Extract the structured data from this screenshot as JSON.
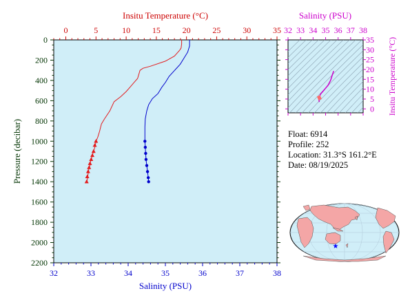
{
  "chart_data": [
    {
      "type": "line",
      "top_axis": {
        "label": "Insitu Temperature (°C)",
        "range": [
          -2,
          35
        ],
        "ticks": [
          0,
          5,
          10,
          15,
          20,
          25,
          30,
          35
        ],
        "color": "#cc0000"
      },
      "bottom_axis": {
        "label": "Salinity (PSU)",
        "range": [
          32,
          38
        ],
        "ticks": [
          32,
          33,
          34,
          35,
          36,
          37,
          38
        ],
        "color": "#0000cc"
      },
      "y_axis": {
        "label": "Pressure (decibar)",
        "range": [
          0,
          2200
        ],
        "reversed": true,
        "ticks": [
          0,
          200,
          400,
          600,
          800,
          1000,
          1200,
          1400,
          1600,
          1800,
          2000,
          2200
        ],
        "color": "#003300"
      },
      "background": "#d0eef8",
      "series": [
        {
          "color": "#e31a1c",
          "marker": "triangle",
          "axis": "top",
          "points": [
            [
              19.2,
              0
            ],
            [
              19.2,
              40
            ],
            [
              19.1,
              80
            ],
            [
              18.9,
              100
            ],
            [
              18.0,
              160
            ],
            [
              16.5,
              210
            ],
            [
              14.0,
              260
            ],
            [
              12.8,
              280
            ],
            [
              12.3,
              300
            ],
            [
              11.9,
              380
            ],
            [
              11.3,
              420
            ],
            [
              10.6,
              470
            ],
            [
              10.0,
              510
            ],
            [
              9.1,
              560
            ],
            [
              8.0,
              610
            ],
            [
              7.3,
              700
            ],
            [
              6.4,
              780
            ],
            [
              5.9,
              830
            ],
            [
              5.6,
              900
            ],
            [
              5.3,
              960
            ],
            [
              5.0,
              1000
            ],
            [
              4.9,
              1040
            ],
            [
              4.7,
              1080
            ],
            [
              4.5,
              1120
            ],
            [
              4.3,
              1160
            ],
            [
              4.1,
              1200
            ],
            [
              4.0,
              1240
            ],
            [
              3.8,
              1280
            ],
            [
              3.7,
              1320
            ],
            [
              3.6,
              1360
            ],
            [
              3.5,
              1400
            ]
          ],
          "marked_points": [
            [
              5.0,
              1000
            ],
            [
              4.8,
              1040
            ],
            [
              4.6,
              1100
            ],
            [
              4.4,
              1140
            ],
            [
              4.2,
              1180
            ],
            [
              4.0,
              1220
            ],
            [
              3.85,
              1260
            ],
            [
              3.7,
              1300
            ],
            [
              3.55,
              1350
            ],
            [
              3.45,
              1400
            ]
          ]
        },
        {
          "color": "#0000cc",
          "marker": "circle",
          "axis": "bottom",
          "points": [
            [
              35.65,
              0
            ],
            [
              35.65,
              60
            ],
            [
              35.6,
              120
            ],
            [
              35.5,
              180
            ],
            [
              35.4,
              240
            ],
            [
              35.25,
              300
            ],
            [
              35.1,
              360
            ],
            [
              35.0,
              420
            ],
            [
              34.9,
              470
            ],
            [
              34.8,
              530
            ],
            [
              34.65,
              580
            ],
            [
              34.55,
              640
            ],
            [
              34.5,
              700
            ],
            [
              34.46,
              780
            ],
            [
              34.45,
              860
            ],
            [
              34.45,
              940
            ],
            [
              34.45,
              1000
            ],
            [
              34.46,
              1060
            ],
            [
              34.47,
              1120
            ],
            [
              34.48,
              1180
            ],
            [
              34.5,
              1240
            ],
            [
              34.52,
              1300
            ],
            [
              34.54,
              1360
            ],
            [
              34.55,
              1400
            ]
          ],
          "marked_points": [
            [
              34.45,
              1000
            ],
            [
              34.46,
              1060
            ],
            [
              34.47,
              1120
            ],
            [
              34.48,
              1180
            ],
            [
              34.5,
              1240
            ],
            [
              34.52,
              1300
            ],
            [
              34.54,
              1360
            ],
            [
              34.55,
              1400
            ]
          ]
        }
      ]
    },
    {
      "type": "line",
      "top_axis": {
        "label": "Salinity (PSU)",
        "range": [
          32,
          38
        ],
        "ticks": [
          32,
          33,
          34,
          35,
          36,
          37,
          38
        ],
        "color": "#cc00cc"
      },
      "right_axis": {
        "label": "Insitu Temperature (°C)",
        "range": [
          -2,
          35
        ],
        "ticks": [
          0,
          5,
          10,
          15,
          20,
          25,
          30,
          35
        ],
        "color": "#cc00cc"
      },
      "background": "#d0eef8",
      "series": [
        {
          "color": "#cc00cc",
          "points": [
            [
              35.65,
              19.2
            ],
            [
              35.55,
              17.5
            ],
            [
              35.4,
              14.5
            ],
            [
              35.2,
              12.0
            ],
            [
              35.0,
              10.5
            ],
            [
              34.8,
              9.0
            ],
            [
              34.6,
              7.5
            ],
            [
              34.5,
              6.0
            ],
            [
              34.45,
              5.0
            ],
            [
              34.5,
              3.5
            ]
          ]
        }
      ]
    }
  ],
  "info": {
    "float": "Float:  6914",
    "profile": "Profile:  252",
    "location": "Location:  31.3°S  161.2°E",
    "date": "Date:  08/19/2025"
  },
  "map": {
    "ocean_color": "#d0eef8",
    "land_color": "#f4a6a6",
    "marker_color": "#0000ff",
    "marker_location": [
      161.2,
      -31.3
    ]
  }
}
